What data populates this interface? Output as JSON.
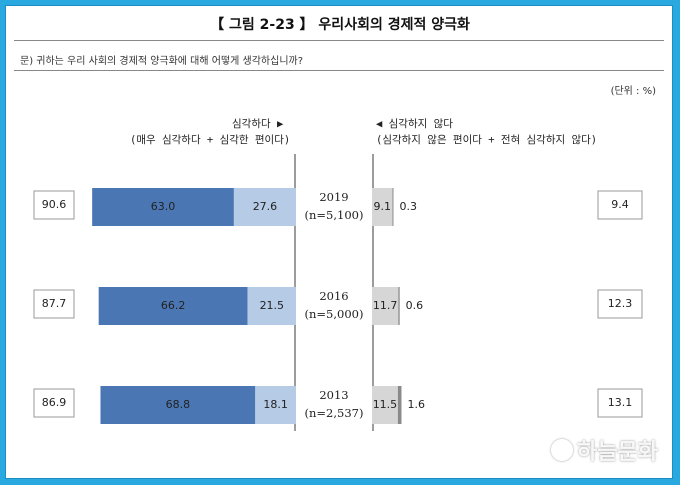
{
  "header": {
    "title": "【 그림 2-23 】 우리사회의 경제적 양극화",
    "question": "문) 귀하는 우리 사회의 경제적 양극화에 대해 어떻게 생각하십니까?",
    "unit": "(단위 : %)",
    "left_header": "심각하다 ▶",
    "left_sub": "(매우 심각하다 + 심각한 편이다)",
    "right_header": "◀ 심각하지 않다",
    "right_sub": "(심각하지 않은 편이다 + 전혀 심각하지 않다)"
  },
  "watermark": {
    "text": "하늘문화"
  },
  "colors": {
    "dark_blue": "#4a77b4",
    "light_blue": "#b5cbe6",
    "gray": "#d6d6d6",
    "dark_gray": "#8a8a8a"
  },
  "chart_data": {
    "type": "bar",
    "orientation": "horizontal-diverging",
    "rows": [
      {
        "year": "2019",
        "sample": "(n=5,100)",
        "serious_total": "90.6",
        "very_serious": 63.0,
        "somewhat_serious": 27.6,
        "not_very_serious": 9.1,
        "not_at_all": 0.3,
        "not_serious_total": "9.4",
        "very_label": "63.0",
        "some_label": "27.6",
        "notvery_label": "9.1",
        "notall_label": "0.3"
      },
      {
        "year": "2016",
        "sample": "(n=5,000)",
        "serious_total": "87.7",
        "very_serious": 66.2,
        "somewhat_serious": 21.5,
        "not_very_serious": 11.7,
        "not_at_all": 0.6,
        "not_serious_total": "12.3",
        "very_label": "66.2",
        "some_label": "21.5",
        "notvery_label": "11.7",
        "notall_label": "0.6"
      },
      {
        "year": "2013",
        "sample": "(n=2,537)",
        "serious_total": "86.9",
        "very_serious": 68.8,
        "somewhat_serious": 18.1,
        "not_very_serious": 11.5,
        "not_at_all": 1.6,
        "not_serious_total": "13.1",
        "very_label": "68.8",
        "some_label": "18.1",
        "notvery_label": "11.5",
        "notall_label": "1.6"
      }
    ]
  }
}
